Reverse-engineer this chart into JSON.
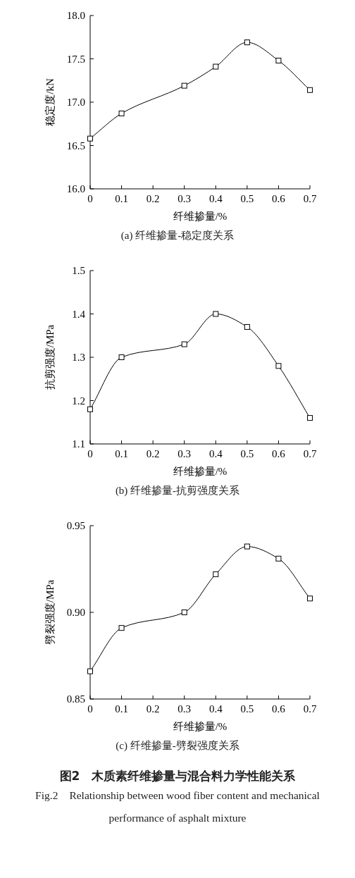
{
  "chart_data": [
    {
      "type": "line",
      "title": "(a) 纤维掺量-稳定度关系",
      "xlabel": "纤维掺量/%",
      "ylabel": "稳定度/kN",
      "x": [
        0,
        0.1,
        0.3,
        0.4,
        0.5,
        0.6,
        0.7
      ],
      "series": [
        {
          "color": "#000000",
          "values": [
            16.58,
            16.87,
            17.19,
            17.41,
            17.69,
            17.48,
            17.14
          ]
        }
      ],
      "xlim": [
        0,
        0.7
      ],
      "xticks": [
        0,
        0.1,
        0.2,
        0.3,
        0.4,
        0.5,
        0.6,
        0.7
      ],
      "ylim": [
        16.0,
        18.0
      ],
      "yticks": [
        {
          "value": 16,
          "label": "16.0"
        },
        16.5,
        {
          "value": 17,
          "label": "17.0"
        },
        17.5,
        {
          "value": 18,
          "label": "18.0"
        }
      ],
      "grid": false,
      "marker": "square",
      "line_style": "solid"
    },
    {
      "type": "line",
      "title": "(b) 纤维掺量-抗剪强度关系",
      "xlabel": "纤维掺量/%",
      "ylabel": "抗剪强度/MPa",
      "x": [
        0,
        0.1,
        0.3,
        0.4,
        0.5,
        0.6,
        0.7
      ],
      "series": [
        {
          "color": "#000000",
          "values": [
            1.18,
            1.3,
            1.33,
            1.4,
            1.37,
            1.28,
            1.16
          ]
        }
      ],
      "xlim": [
        0,
        0.7
      ],
      "xticks": [
        0,
        0.1,
        0.2,
        0.3,
        0.4,
        0.5,
        0.6,
        0.7
      ],
      "ylim": [
        1.1,
        1.5
      ],
      "yticks": [
        1.1,
        1.2,
        1.3,
        1.4,
        1.5
      ],
      "grid": false,
      "marker": "square",
      "line_style": "solid"
    },
    {
      "type": "line",
      "title": "(c) 纤维掺量-劈裂强度关系",
      "xlabel": "纤维掺量/%",
      "ylabel": "劈裂强度/MPa",
      "x": [
        0,
        0.1,
        0.3,
        0.4,
        0.5,
        0.6,
        0.7
      ],
      "series": [
        {
          "color": "#000000",
          "values": [
            0.866,
            0.891,
            0.9,
            0.922,
            0.938,
            0.931,
            0.908
          ]
        }
      ],
      "xlim": [
        0,
        0.7
      ],
      "xticks": [
        0,
        0.1,
        0.2,
        0.3,
        0.4,
        0.5,
        0.6,
        0.7
      ],
      "ylim": [
        0.85,
        0.95
      ],
      "yticks": [
        0.85,
        {
          "value": 0.9,
          "label": "0.90"
        },
        0.95
      ],
      "grid": false,
      "marker": "square",
      "line_style": "solid",
      "annotations": [
        "图2　木质素纤维掺量与混合料力学性能关系",
        "Fig.2　Relationship between wood fiber content and mechanical performance of asphalt mixture"
      ]
    }
  ]
}
